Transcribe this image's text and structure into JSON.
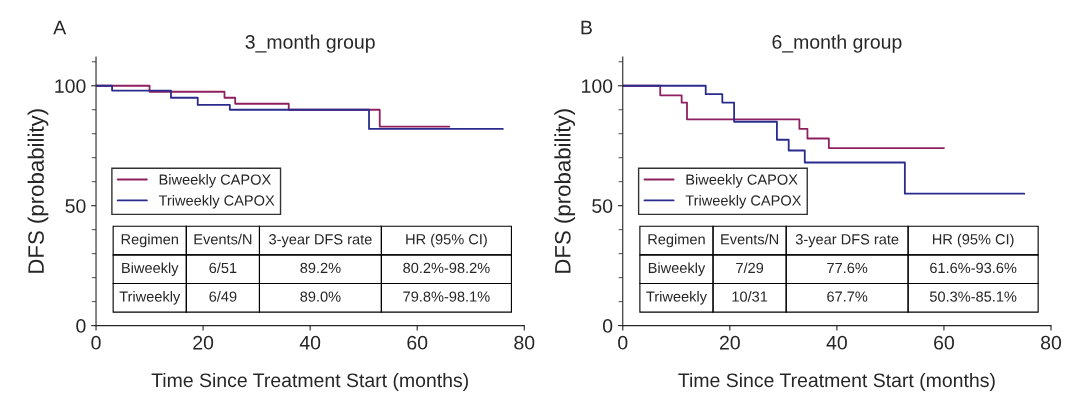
{
  "chart_data": [
    {
      "type": "step",
      "title": "3_month group",
      "xlabel": "Time Since Treatment Start (months)",
      "ylabel": "DFS (probability)",
      "xlim": [
        0,
        80
      ],
      "xticks": [
        0,
        20,
        40,
        60,
        80
      ],
      "ylim": [
        0,
        112
      ],
      "yticks": [
        0,
        50,
        100
      ],
      "legend": "center left",
      "series": [
        {
          "name": "Biweekly CAPOX",
          "color": "#8e2060",
          "x": [
            0,
            10,
            24,
            26,
            36,
            53,
            66
          ],
          "values": [
            100,
            97.5,
            95,
            92.5,
            90,
            83,
            83
          ]
        },
        {
          "name": "Triweekly CAPOX",
          "color": "#2b2b8e",
          "x": [
            0,
            3,
            14,
            19,
            25,
            51,
            76
          ],
          "values": [
            100,
            98,
            95,
            92,
            90,
            82,
            82
          ]
        }
      ],
      "annotations": [
        "A",
        "Regimen",
        "Events/N",
        "3-year DFS rate",
        "HR (95% CI)",
        "Biweekly",
        "6/51",
        "89.2%",
        "80.2%-98.2%",
        "Triweekly",
        "6/49",
        "89.0%",
        "79.8%-98.1%"
      ]
    },
    {
      "type": "step",
      "title": "6_month group",
      "xlabel": "Time Since Treatment Start (months)",
      "ylabel": "DFS (probability)",
      "xlim": [
        0,
        80
      ],
      "xticks": [
        0,
        20,
        40,
        60,
        80
      ],
      "ylim": [
        0,
        112
      ],
      "yticks": [
        0,
        50,
        100
      ],
      "legend": "center left",
      "series": [
        {
          "name": "Biweekly CAPOX",
          "color": "#8e2060",
          "x": [
            0,
            7,
            11,
            12,
            33,
            34.5,
            38.5,
            60
          ],
          "values": [
            100,
            96,
            93,
            86,
            82,
            78,
            74,
            74
          ]
        },
        {
          "name": "Triweekly CAPOX",
          "color": "#2b2b8e",
          "x": [
            0,
            15.5,
            18.6,
            20.8,
            28.8,
            31,
            34,
            52.7,
            75
          ],
          "values": [
            100,
            96.5,
            93,
            85,
            77.5,
            73,
            68,
            55,
            55
          ]
        }
      ],
      "annotations": [
        "B",
        "Regimen",
        "Events/N",
        "3-year DFS rate",
        "HR (95% CI)",
        "Biweekly",
        "7/29",
        "77.6%",
        "61.6%-93.6%",
        "Triweekly",
        "10/31",
        "67.7%",
        "50.3%-85.1%"
      ]
    }
  ]
}
